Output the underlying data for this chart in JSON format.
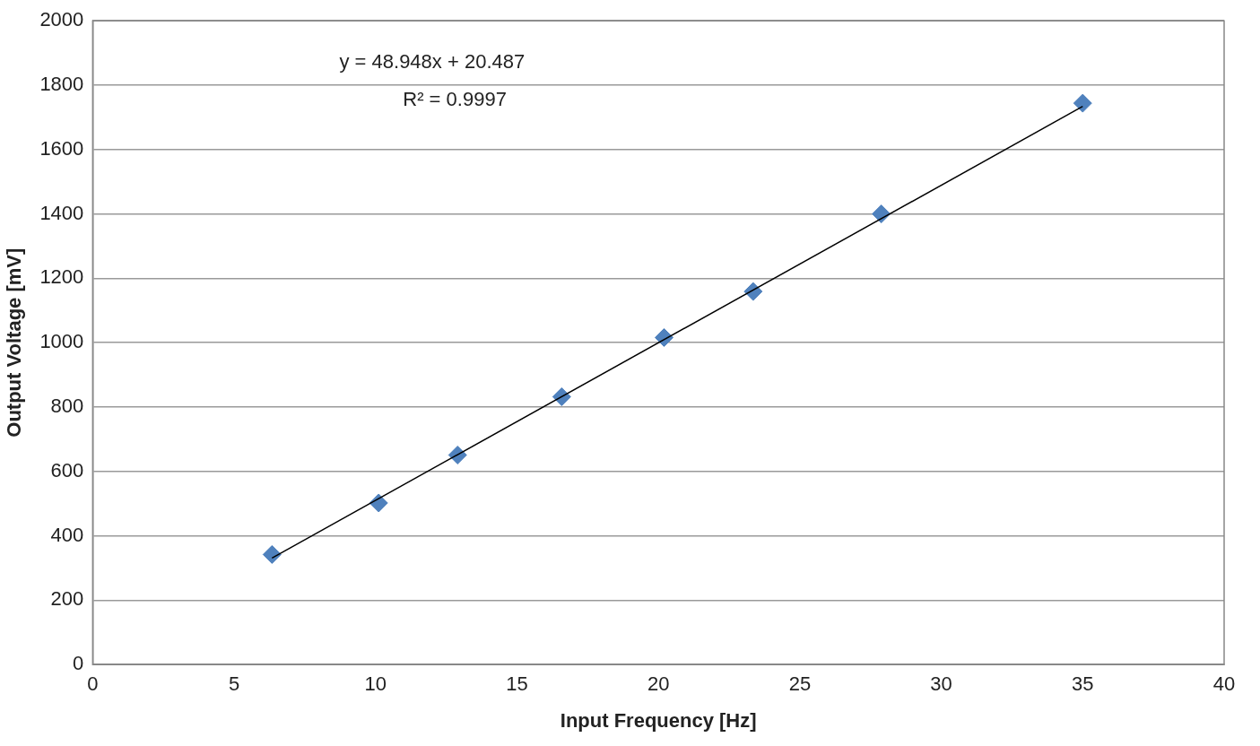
{
  "chart_data": {
    "type": "scatter",
    "xlabel": "Input Frequency [Hz]",
    "ylabel": "Output Voltage [mV]",
    "xlim": [
      0,
      40
    ],
    "xticks": [
      0,
      5,
      10,
      15,
      20,
      25,
      30,
      35,
      40
    ],
    "ylim": [
      0,
      2000
    ],
    "yticks": [
      0,
      200,
      400,
      600,
      800,
      1000,
      1200,
      1400,
      1600,
      1800,
      2000
    ],
    "grid": "y",
    "legend": false,
    "marker": "diamond",
    "annotations": [
      "y = 48.948x + 20.487",
      "R² = 0.9997"
    ],
    "series": [
      {
        "type": "scatter",
        "color": "#4f81bd",
        "x": [
          6.34,
          10.11,
          12.9,
          16.58,
          20.2,
          23.35,
          27.88,
          35.0
        ],
        "values": [
          342,
          502,
          651,
          832,
          1016,
          1159,
          1400,
          1744
        ]
      },
      {
        "type": "line",
        "color": "#000000",
        "marker": "none",
        "x": [
          6.34,
          35.0
        ],
        "values": [
          331,
          1734
        ]
      }
    ]
  }
}
